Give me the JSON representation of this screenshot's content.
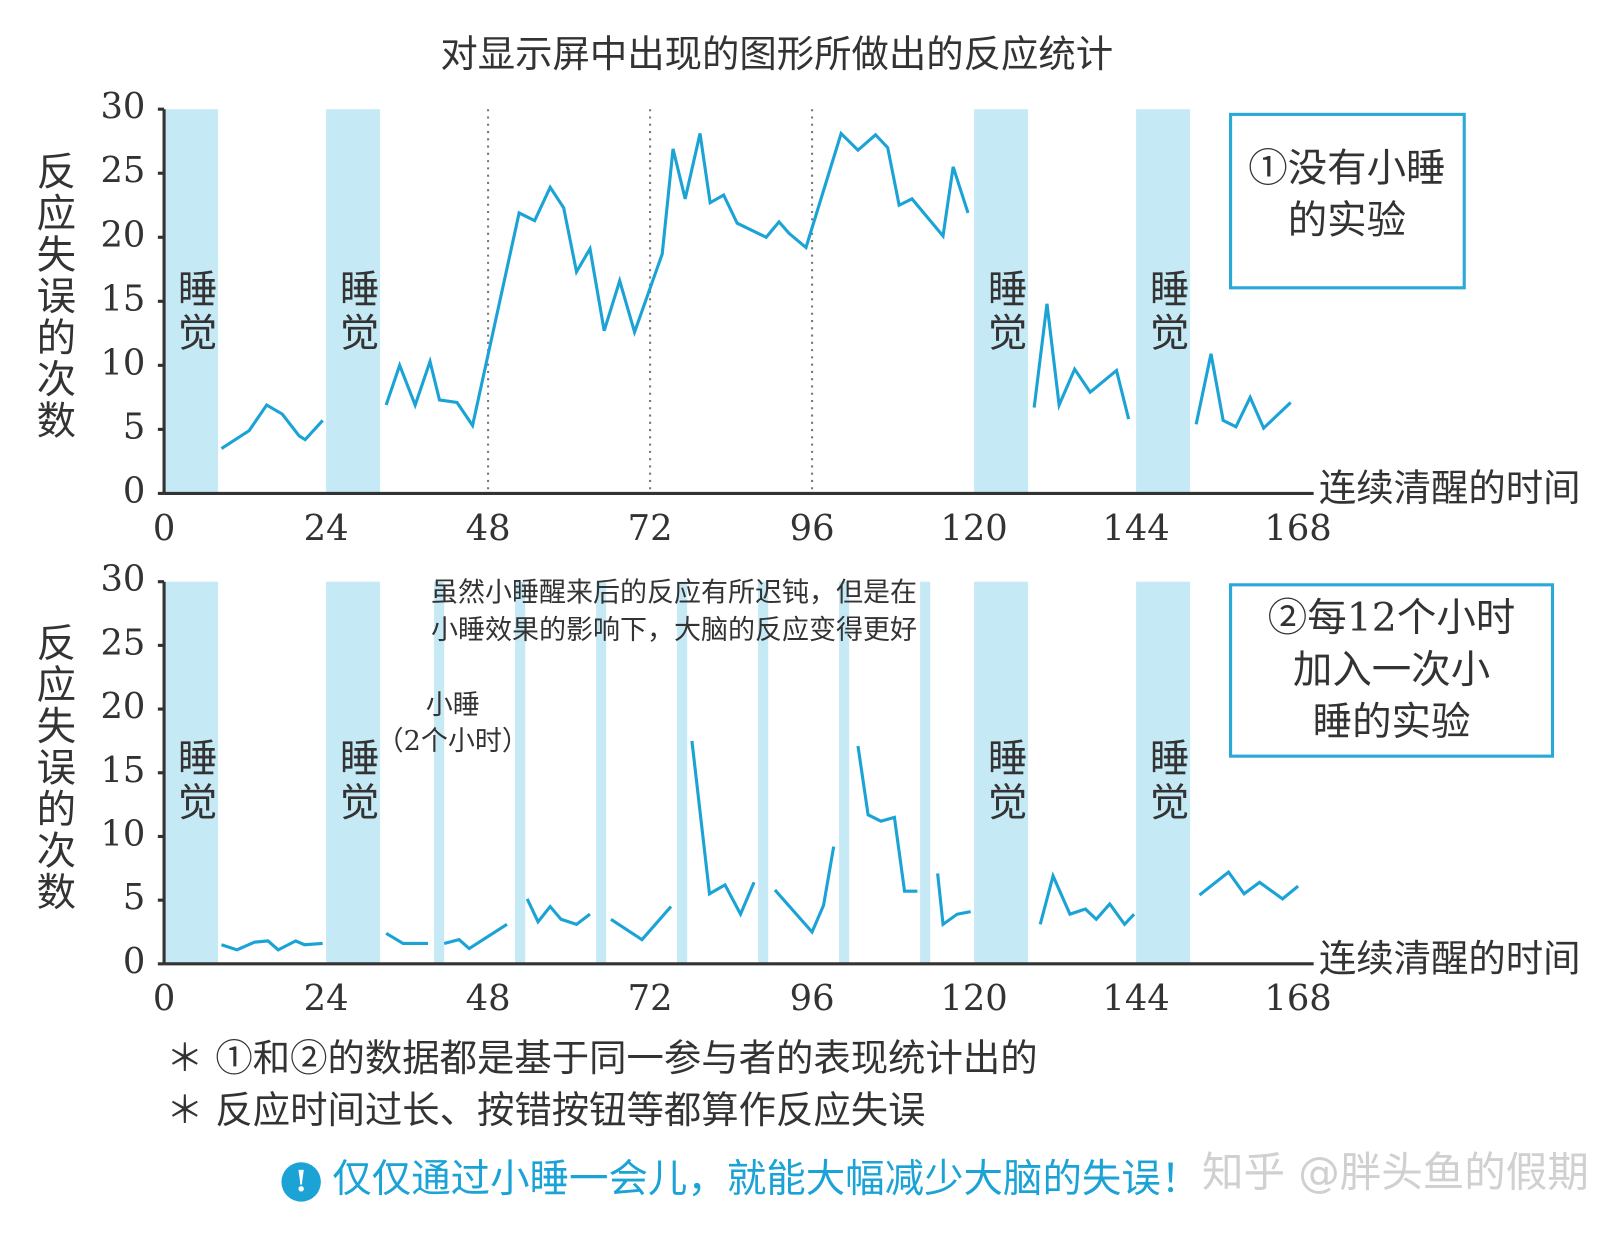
{
  "chart_data": [
    {
      "type": "line",
      "title": "对显示屏中出现的图形所做出的反应统计",
      "y_label": "反应失误的次数",
      "x_label": "连续清醒的时间",
      "xlim": [
        0,
        168
      ],
      "xticks": [
        0,
        24,
        48,
        72,
        96,
        120,
        144,
        168
      ],
      "ylim": [
        0,
        30
      ],
      "yticks": [
        0,
        5,
        10,
        15,
        20,
        25,
        30
      ],
      "box_text": [
        "①没有小睡",
        "的实验"
      ],
      "sleep": [
        {
          "from": 0,
          "to": 8,
          "label": "睡觉"
        },
        {
          "from": 24,
          "to": 32,
          "label": "睡觉"
        },
        {
          "from": 120,
          "to": 128,
          "label": "睡觉"
        },
        {
          "from": 144,
          "to": 152,
          "label": "睡觉"
        }
      ],
      "naps": [],
      "vlines": [
        48,
        72,
        96
      ],
      "band_color": "#c6e9f6",
      "series": [
        {
          "color": "#1ba3d6",
          "x": [
            8.5,
            12.6,
            15.2,
            17.5,
            20,
            20.9,
            23.5,
            null,
            32.9,
            34.9,
            37.2,
            39.4,
            40.8,
            43.4,
            45.7,
            52.6,
            54.9,
            57.2,
            59.2,
            61.1,
            63.1,
            65.2,
            67.5,
            69.7,
            73.8,
            75.4,
            77.2,
            79.4,
            80.9,
            82.9,
            84.9,
            89.2,
            91.1,
            92.6,
            95.1,
            100.3,
            102.8,
            105.4,
            107.2,
            108.9,
            110.8,
            115.4,
            116.9,
            119.1,
            null,
            128.9,
            130.8,
            132.6,
            134.9,
            137.2,
            141.1,
            142.9,
            null,
            152.9,
            155.1,
            156.9,
            158.8,
            160.9,
            162.9,
            166.9
          ],
          "values": [
            3.5,
            4.9,
            6.9,
            6.2,
            4.5,
            4.2,
            5.7,
            null,
            6.9,
            10.0,
            6.9,
            10.3,
            7.3,
            7.1,
            5.3,
            21.9,
            21.3,
            23.9,
            22.3,
            17.3,
            19.1,
            12.7,
            16.6,
            12.6,
            18.7,
            26.9,
            23.0,
            28.1,
            22.7,
            23.3,
            21.1,
            20.0,
            21.2,
            20.3,
            19.2,
            28.1,
            26.8,
            28.0,
            27.0,
            22.5,
            23.0,
            20.1,
            25.5,
            21.9,
            null,
            6.7,
            14.8,
            6.9,
            9.7,
            7.9,
            9.6,
            5.8,
            null,
            5.4,
            10.9,
            5.7,
            5.2,
            7.5,
            5.1,
            7.1
          ]
        }
      ]
    },
    {
      "type": "line",
      "y_label": "反应失误的次数",
      "x_label": "连续清醒的时间",
      "xlim": [
        0,
        168
      ],
      "xticks": [
        0,
        24,
        48,
        72,
        96,
        120,
        144,
        168
      ],
      "ylim": [
        0,
        30
      ],
      "yticks": [
        0,
        5,
        10,
        15,
        20,
        25,
        30
      ],
      "box_text": [
        "②每12个小时",
        "加入一次小",
        "睡的实验"
      ],
      "nap_note": [
        "小睡",
        "（2个小时）"
      ],
      "effect_note": [
        "虽然小睡醒来后的反应有所迟钝，但是在",
        "小睡效果的影响下，大脑的反应变得更好"
      ],
      "sleep": [
        {
          "from": 0,
          "to": 8,
          "label": "睡觉"
        },
        {
          "from": 24,
          "to": 32,
          "label": "睡觉"
        },
        {
          "from": 120,
          "to": 128,
          "label": "睡觉"
        },
        {
          "from": 144,
          "to": 152,
          "label": "睡觉"
        }
      ],
      "naps": [
        {
          "from": 40,
          "to": 41.5
        },
        {
          "from": 52,
          "to": 53.5
        },
        {
          "from": 64,
          "to": 65.5
        },
        {
          "from": 76,
          "to": 77.5
        },
        {
          "from": 88,
          "to": 89.5
        },
        {
          "from": 100,
          "to": 101.5
        },
        {
          "from": 112,
          "to": 113.5
        }
      ],
      "vlines": [],
      "band_color": "#c6e9f6",
      "series": [
        {
          "color": "#1ba3d6",
          "x": [
            8.5,
            10.8,
            13.4,
            15.4,
            16.9,
            19.5,
            20.8,
            23.5,
            null,
            32.9,
            35.4,
            39.1,
            null,
            41.5,
            43.7,
            45.2,
            50.8,
            null,
            53.8,
            55.4,
            57.2,
            58.8,
            61.1,
            63.1,
            null,
            66.2,
            70.8,
            75.1,
            null,
            78.2,
            80.8,
            83.1,
            85.4,
            87.4,
            null,
            90.5,
            96,
            97.7,
            99.2,
            null,
            102.8,
            104.3,
            106.2,
            108.2,
            109.7,
            111.6,
            null,
            114.6,
            115.4,
            117.5,
            119.5,
            null,
            129.8,
            131.7,
            134.2,
            136.5,
            138.1,
            140.1,
            142.3,
            143.7,
            null,
            153.4,
            157.7,
            160,
            162.3,
            165.7,
            168
          ],
          "values": [
            1.5,
            1.1,
            1.7,
            1.8,
            1.1,
            1.8,
            1.5,
            1.6,
            null,
            2.4,
            1.6,
            1.6,
            null,
            1.6,
            1.9,
            1.2,
            3.1,
            null,
            5.1,
            3.3,
            4.5,
            3.5,
            3.1,
            3.9,
            null,
            3.5,
            1.9,
            4.5,
            null,
            17.5,
            5.5,
            6.2,
            3.9,
            6.4,
            null,
            5.8,
            2.5,
            4.6,
            9.2,
            null,
            17.1,
            11.7,
            11.2,
            11.5,
            5.7,
            5.7,
            null,
            7.1,
            3.1,
            3.9,
            4.1,
            null,
            3.1,
            6.9,
            3.9,
            4.3,
            3.5,
            4.7,
            3.1,
            3.9,
            null,
            5.4,
            7.2,
            5.5,
            6.4,
            5.1,
            6.1
          ]
        }
      ]
    }
  ],
  "footnotes": [
    "＊ ①和②的数据都是基于同一参与者的表现统计出的",
    "＊ 反应时间过长、按错按钮等都算作反应失误"
  ],
  "callout": "仅仅通过小睡一会儿，就能大幅减少大脑的失误！",
  "watermark": "知乎 @胖头鱼的假期"
}
